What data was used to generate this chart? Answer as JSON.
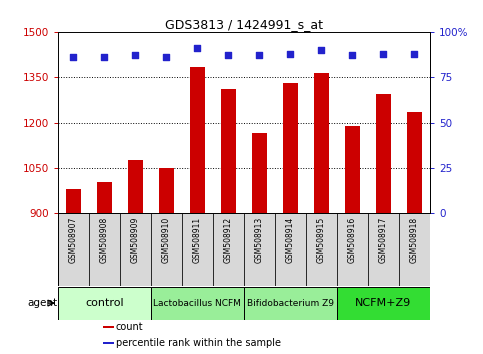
{
  "title": "GDS3813 / 1424991_s_at",
  "samples": [
    "GSM508907",
    "GSM508908",
    "GSM508909",
    "GSM508910",
    "GSM508911",
    "GSM508912",
    "GSM508913",
    "GSM508914",
    "GSM508915",
    "GSM508916",
    "GSM508917",
    "GSM508918"
  ],
  "counts": [
    980,
    1005,
    1075,
    1050,
    1385,
    1310,
    1165,
    1330,
    1365,
    1190,
    1295,
    1235
  ],
  "percentile_ranks": [
    86,
    86,
    87,
    86,
    91,
    87,
    87,
    88,
    90,
    87,
    88,
    88
  ],
  "bar_color": "#cc0000",
  "dot_color": "#2222cc",
  "ylim_left": [
    900,
    1500
  ],
  "ylim_right": [
    0,
    100
  ],
  "yticks_left": [
    900,
    1050,
    1200,
    1350,
    1500
  ],
  "yticks_right": [
    0,
    25,
    50,
    75,
    100
  ],
  "ytick_labels_right": [
    "0",
    "25",
    "50",
    "75",
    "100%"
  ],
  "groups": [
    {
      "label": "control",
      "start": 0,
      "end": 3,
      "color": "#ccffcc",
      "fontsize": 8
    },
    {
      "label": "Lactobacillus NCFM",
      "start": 3,
      "end": 6,
      "color": "#99ee99",
      "fontsize": 6.5
    },
    {
      "label": "Bifidobacterium Z9",
      "start": 6,
      "end": 9,
      "color": "#99ee99",
      "fontsize": 6.5
    },
    {
      "label": "NCFM+Z9",
      "start": 9,
      "end": 12,
      "color": "#33dd33",
      "fontsize": 8
    }
  ],
  "agent_label": "agent",
  "legend_items": [
    {
      "color": "#cc0000",
      "label": "count"
    },
    {
      "color": "#2222cc",
      "label": "percentile rank within the sample"
    }
  ],
  "grid_color": "#000000",
  "background_color": "#ffffff",
  "sample_box_color": "#d8d8d8",
  "tick_label_color_left": "#cc0000",
  "tick_label_color_right": "#2222cc"
}
